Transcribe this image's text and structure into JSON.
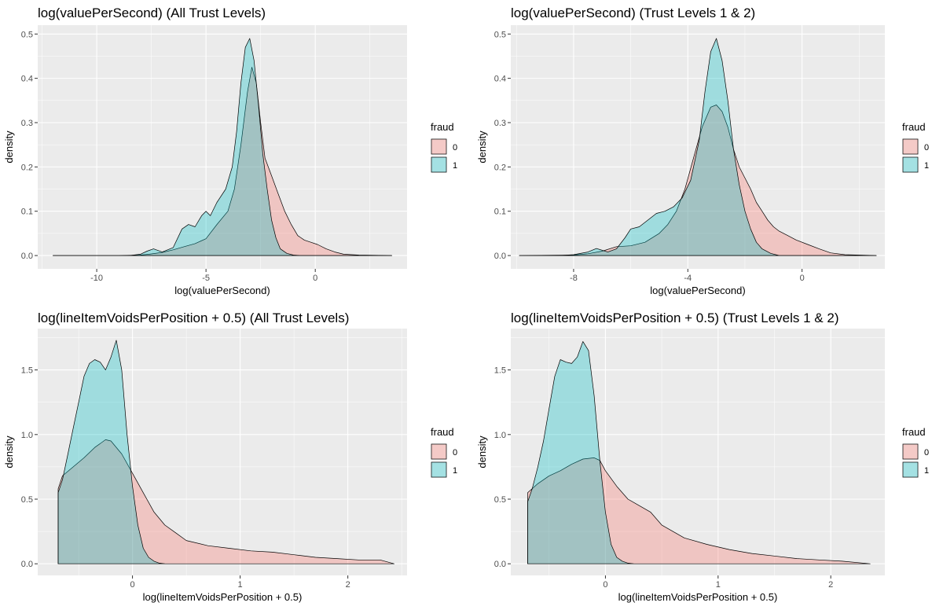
{
  "colors": {
    "fraud_0": "#F8766D",
    "fraud_1": "#00BFC4",
    "panel_bg": "#EBEBEB",
    "grid_major": "#FFFFFF"
  },
  "legend": {
    "title": "fraud",
    "labels": [
      "0",
      "1"
    ]
  },
  "chart_data": [
    {
      "type": "area",
      "title": "log(valuePerSecond) (All Trust Levels)",
      "xlabel": "log(valuePerSecond)",
      "ylabel": "density",
      "xlim": [
        -12.7,
        4.2
      ],
      "ylim": [
        -0.03,
        0.52
      ],
      "xticks": [
        -10,
        -5,
        0
      ],
      "xtick_labels": [
        "-10",
        "-5",
        "0"
      ],
      "yticks": [
        0.0,
        0.1,
        0.2,
        0.3,
        0.4,
        0.5
      ],
      "ytick_labels": [
        "0.0",
        "0.1",
        "0.2",
        "0.3",
        "0.4",
        "0.5"
      ],
      "grid": true,
      "legend_position": "right",
      "series": [
        {
          "name": "0",
          "x": [
            -12,
            -11,
            -9,
            -8,
            -7.6,
            -7,
            -6.5,
            -6,
            -5.5,
            -5,
            -4.5,
            -4,
            -3.7,
            -3.4,
            -3.1,
            -2.9,
            -2.7,
            -2.5,
            -2.3,
            -2,
            -1.7,
            -1.4,
            -1.1,
            -0.8,
            -0.5,
            -0.2,
            0.1,
            0.5,
            0.9,
            1.3,
            2,
            3.5
          ],
          "y": [
            0.0,
            0.0,
            0.0,
            0.001,
            0.003,
            0.007,
            0.013,
            0.02,
            0.027,
            0.038,
            0.07,
            0.1,
            0.15,
            0.25,
            0.37,
            0.425,
            0.39,
            0.3,
            0.22,
            0.18,
            0.14,
            0.1,
            0.07,
            0.045,
            0.035,
            0.03,
            0.025,
            0.015,
            0.008,
            0.003,
            0.001,
            0.0
          ]
        },
        {
          "name": "1",
          "x": [
            -12,
            -10,
            -8.5,
            -8,
            -7.7,
            -7.4,
            -7.0,
            -6.5,
            -6.1,
            -5.8,
            -5.5,
            -5.2,
            -5.0,
            -4.8,
            -4.5,
            -4.1,
            -3.8,
            -3.6,
            -3.4,
            -3.2,
            -3.0,
            -2.8,
            -2.6,
            -2.4,
            -2.2,
            -2.0,
            -1.8,
            -1.6,
            -1.3,
            -1.0,
            -0.7,
            0,
            3.5
          ],
          "y": [
            0.0,
            0.0,
            0.0,
            0.003,
            0.01,
            0.015,
            0.008,
            0.018,
            0.06,
            0.07,
            0.065,
            0.09,
            0.1,
            0.09,
            0.12,
            0.15,
            0.2,
            0.28,
            0.39,
            0.47,
            0.49,
            0.44,
            0.34,
            0.23,
            0.15,
            0.08,
            0.04,
            0.015,
            0.005,
            0.001,
            0.0,
            0.0,
            0.0
          ]
        }
      ]
    },
    {
      "type": "area",
      "title": "log(valuePerSecond) (Trust Levels 1 & 2)",
      "xlabel": "log(valuePerSecond)",
      "ylabel": "density",
      "xlim": [
        -10.2,
        2.9
      ],
      "ylim": [
        -0.03,
        0.52
      ],
      "xticks": [
        -8,
        -4,
        0
      ],
      "xtick_labels": [
        "-8",
        "-4",
        "0"
      ],
      "yticks": [
        0.0,
        0.1,
        0.2,
        0.3,
        0.4,
        0.5
      ],
      "ytick_labels": [
        "0.0",
        "0.1",
        "0.2",
        "0.3",
        "0.4",
        "0.5"
      ],
      "grid": true,
      "legend_position": "right",
      "series": [
        {
          "name": "0",
          "x": [
            -9.9,
            -8,
            -7.5,
            -7,
            -6.5,
            -6,
            -5.5,
            -5,
            -4.7,
            -4.4,
            -4.1,
            -3.8,
            -3.5,
            -3.2,
            -3.0,
            -2.8,
            -2.6,
            -2.4,
            -2.2,
            -2.0,
            -1.8,
            -1.6,
            -1.4,
            -1.2,
            -1.0,
            -0.8,
            -0.5,
            -0.2,
            0.2,
            0.6,
            1.0,
            1.5,
            2.0,
            2.6
          ],
          "y": [
            0.0,
            0.001,
            0.004,
            0.01,
            0.02,
            0.022,
            0.03,
            0.05,
            0.07,
            0.1,
            0.15,
            0.22,
            0.29,
            0.335,
            0.34,
            0.325,
            0.29,
            0.24,
            0.2,
            0.175,
            0.15,
            0.12,
            0.1,
            0.08,
            0.065,
            0.055,
            0.045,
            0.035,
            0.025,
            0.015,
            0.006,
            0.002,
            0.001,
            0.0
          ]
        },
        {
          "name": "1",
          "x": [
            -9.9,
            -8.5,
            -8,
            -7.5,
            -7.2,
            -6.8,
            -6.5,
            -6.2,
            -6.0,
            -5.7,
            -5.4,
            -5.1,
            -4.8,
            -4.5,
            -4.2,
            -3.9,
            -3.6,
            -3.4,
            -3.2,
            -3.0,
            -2.8,
            -2.6,
            -2.4,
            -2.2,
            -2.0,
            -1.8,
            -1.6,
            -1.4,
            -1.1,
            -0.8,
            2.6
          ],
          "y": [
            0.0,
            0.0,
            0.002,
            0.008,
            0.016,
            0.008,
            0.015,
            0.04,
            0.06,
            0.065,
            0.08,
            0.095,
            0.1,
            0.11,
            0.13,
            0.17,
            0.26,
            0.37,
            0.46,
            0.49,
            0.44,
            0.35,
            0.24,
            0.16,
            0.1,
            0.06,
            0.03,
            0.015,
            0.005,
            0.0,
            0.0
          ]
        }
      ]
    },
    {
      "type": "area",
      "title": "log(lineItemVoidsPerPosition + 0.5) (All Trust Levels)",
      "xlabel": "log(lineItemVoidsPerPosition + 0.5)",
      "ylabel": "density",
      "xlim": [
        -0.88,
        2.55
      ],
      "ylim": [
        -0.09,
        1.82
      ],
      "xticks": [
        0,
        1,
        2
      ],
      "xtick_labels": [
        "0",
        "1",
        "2"
      ],
      "yticks": [
        0.0,
        0.5,
        1.0,
        1.5
      ],
      "ytick_labels": [
        "0.0",
        "0.5",
        "1.0",
        "1.5"
      ],
      "grid": true,
      "legend_position": "right",
      "series": [
        {
          "name": "0",
          "x": [
            -0.69,
            -0.65,
            -0.55,
            -0.45,
            -0.35,
            -0.25,
            -0.2,
            -0.1,
            0.0,
            0.1,
            0.2,
            0.3,
            0.4,
            0.5,
            0.7,
            0.9,
            1.1,
            1.3,
            1.5,
            1.7,
            1.9,
            2.1,
            2.3,
            2.43
          ],
          "y": [
            0.58,
            0.68,
            0.75,
            0.82,
            0.9,
            0.96,
            0.95,
            0.85,
            0.7,
            0.55,
            0.4,
            0.3,
            0.24,
            0.18,
            0.14,
            0.12,
            0.1,
            0.09,
            0.07,
            0.05,
            0.04,
            0.03,
            0.03,
            0.0
          ]
        },
        {
          "name": "1",
          "x": [
            -0.69,
            -0.65,
            -0.6,
            -0.55,
            -0.5,
            -0.45,
            -0.4,
            -0.35,
            -0.3,
            -0.25,
            -0.2,
            -0.15,
            -0.1,
            -0.05,
            0.0,
            0.05,
            0.1,
            0.15,
            0.2,
            0.25,
            0.3
          ],
          "y": [
            0.55,
            0.65,
            0.85,
            1.05,
            1.25,
            1.45,
            1.55,
            1.58,
            1.56,
            1.5,
            1.6,
            1.73,
            1.5,
            1.0,
            0.6,
            0.3,
            0.12,
            0.05,
            0.02,
            0.005,
            0.0
          ]
        }
      ]
    },
    {
      "type": "area",
      "title": "log(lineItemVoidsPerPosition + 0.5) (Trust Levels 1 & 2)",
      "xlabel": "log(lineItemVoidsPerPosition + 0.5)",
      "ylabel": "density",
      "xlim": [
        -0.84,
        2.48
      ],
      "ylim": [
        -0.09,
        1.82
      ],
      "xticks": [
        0,
        1,
        2
      ],
      "xtick_labels": [
        "0",
        "1",
        "2"
      ],
      "yticks": [
        0.0,
        0.5,
        1.0,
        1.5
      ],
      "ytick_labels": [
        "0.0",
        "0.5",
        "1.0",
        "1.5"
      ],
      "grid": true,
      "legend_position": "right",
      "series": [
        {
          "name": "0",
          "x": [
            -0.69,
            -0.6,
            -0.5,
            -0.4,
            -0.3,
            -0.2,
            -0.1,
            -0.05,
            0.0,
            0.1,
            0.2,
            0.3,
            0.4,
            0.5,
            0.7,
            0.9,
            1.1,
            1.3,
            1.5,
            1.7,
            1.9,
            2.1,
            2.35
          ],
          "y": [
            0.55,
            0.62,
            0.68,
            0.72,
            0.77,
            0.81,
            0.82,
            0.8,
            0.72,
            0.6,
            0.5,
            0.45,
            0.4,
            0.3,
            0.2,
            0.15,
            0.11,
            0.08,
            0.06,
            0.04,
            0.03,
            0.02,
            0.0
          ]
        },
        {
          "name": "1",
          "x": [
            -0.69,
            -0.65,
            -0.6,
            -0.55,
            -0.5,
            -0.45,
            -0.4,
            -0.35,
            -0.3,
            -0.25,
            -0.2,
            -0.15,
            -0.1,
            -0.05,
            0.0,
            0.05,
            0.1,
            0.15,
            0.2,
            0.25
          ],
          "y": [
            0.48,
            0.58,
            0.75,
            0.95,
            1.2,
            1.45,
            1.58,
            1.56,
            1.55,
            1.6,
            1.72,
            1.65,
            1.3,
            0.8,
            0.4,
            0.15,
            0.05,
            0.02,
            0.005,
            0.0
          ]
        }
      ]
    }
  ]
}
